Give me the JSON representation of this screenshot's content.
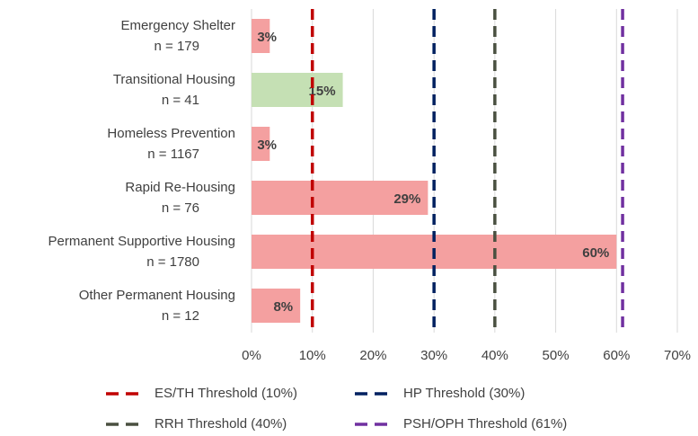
{
  "chart_data": {
    "type": "hbar",
    "categories": [
      "Emergency Shelter",
      "Transitional Housing",
      "Homeless Prevention",
      "Rapid Re-Housing",
      "Permanent Supportive Housing",
      "Other Permanent Housing"
    ],
    "category_counts": [
      "n = 179",
      "n = 41",
      "n = 1167",
      "n = 76",
      "n = 1780",
      "n = 12"
    ],
    "values": [
      3,
      15,
      3,
      29,
      60,
      8
    ],
    "value_labels": [
      "3%",
      "15%",
      "3%",
      "29%",
      "60%",
      "8%"
    ],
    "colors": [
      "#f4a0a0",
      "#c5e0b4",
      "#f4a0a0",
      "#f4a0a0",
      "#f4a0a0",
      "#f4a0a0"
    ],
    "xlim": [
      0,
      70
    ],
    "xticks": [
      {
        "value": 0,
        "label": "0%"
      },
      {
        "value": 10,
        "label": "10%"
      },
      {
        "value": 20,
        "label": "20%"
      },
      {
        "value": 30,
        "label": "30%"
      },
      {
        "value": 40,
        "label": "40%"
      },
      {
        "value": 50,
        "label": "50%"
      },
      {
        "value": 60,
        "label": "60%"
      },
      {
        "value": 70,
        "label": "70%"
      }
    ],
    "grid": true,
    "thresholds": [
      {
        "name": "ES/TH Threshold (10%)",
        "value": 10,
        "color": "#c00000"
      },
      {
        "name": "HP Threshold (30%)",
        "value": 30,
        "color": "#002060"
      },
      {
        "name": "RRH Threshold (40%)",
        "value": 40,
        "color": "#4a5040"
      },
      {
        "name": "PSH/OPH Threshold (61%)",
        "value": 61,
        "color": "#7030a0"
      }
    ]
  }
}
